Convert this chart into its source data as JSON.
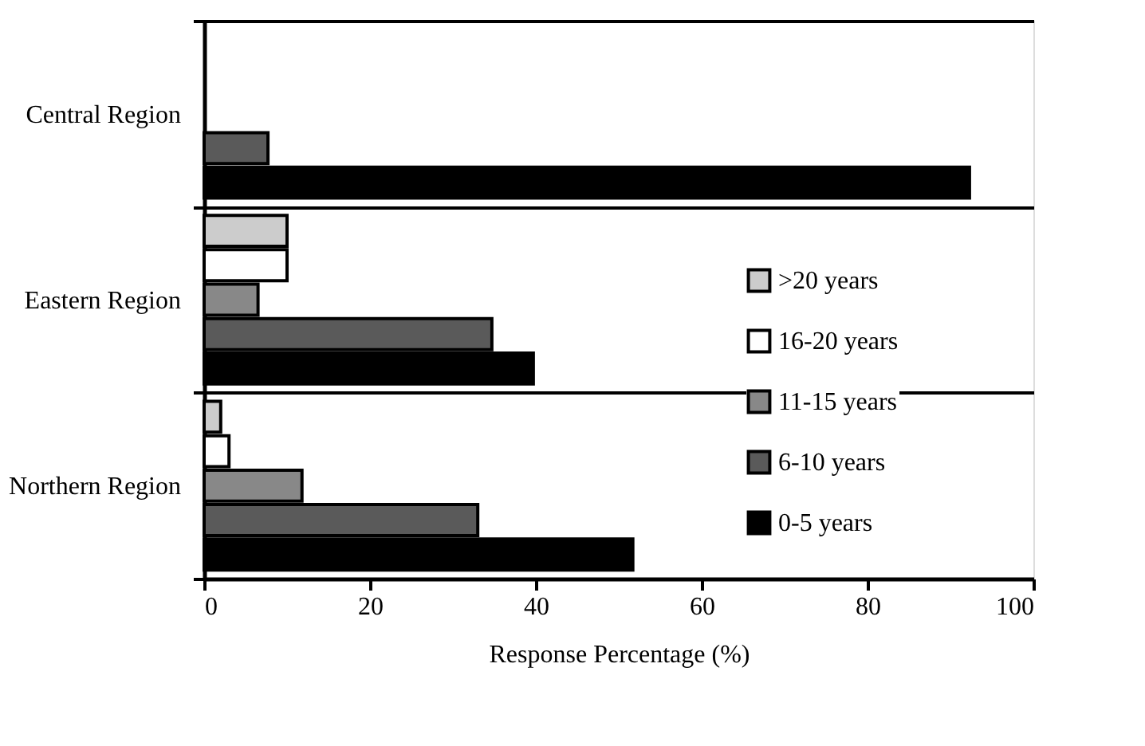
{
  "chart_data": {
    "type": "bar",
    "orientation": "horizontal",
    "xlabel": "Response Percentage (%)",
    "categories": [
      "Central Region",
      "Eastern Region",
      "Northern Region"
    ],
    "series": [
      {
        "name": ">20 years",
        "color": "#cccccc",
        "values": [
          null,
          10,
          2
        ]
      },
      {
        "name": "16-20 years",
        "color": "#ffffff",
        "values": [
          null,
          10,
          3
        ]
      },
      {
        "name": "11-15 years",
        "color": "#888888",
        "values": [
          null,
          6.5,
          11.8
        ]
      },
      {
        "name": "6-10 years",
        "color": "#5a5a5a",
        "values": [
          7.7,
          34.7,
          33
        ]
      },
      {
        "name": "0-5 years",
        "color": "#000000",
        "values": [
          92.3,
          39.7,
          51.7
        ]
      }
    ],
    "xlim": [
      0,
      100
    ],
    "xticks": [
      0,
      20,
      40,
      60,
      80,
      100
    ],
    "grid": "y",
    "legend": "right"
  }
}
